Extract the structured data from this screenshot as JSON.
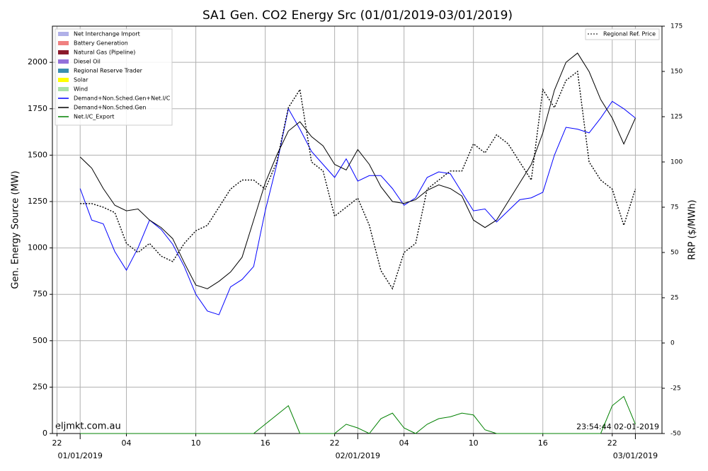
{
  "chart_data": {
    "type": "line",
    "title": "SA1 Gen. CO2 Energy Src (01/01/2019-03/01/2019)",
    "ylabel": "Gen. Energy Source (MW)",
    "y2label": "RRP ($/MWh)",
    "watermark": "eljmkt.com.au",
    "timestamp": "23:54:44 02-01-2019",
    "grid": true,
    "legend": "upper left",
    "legend2": "upper right",
    "xlim": [
      -2.4,
      50.3
    ],
    "xticks": [
      {
        "value": -2,
        "label": "22"
      },
      {
        "value": 4,
        "label": "04"
      },
      {
        "value": 10,
        "label": "10"
      },
      {
        "value": 16,
        "label": "16"
      },
      {
        "value": 22,
        "label": "22"
      },
      {
        "value": 28,
        "label": "04"
      },
      {
        "value": 34,
        "label": "10"
      },
      {
        "value": 40,
        "label": "16"
      },
      {
        "value": 46,
        "label": "22"
      }
    ],
    "date_ticks": [
      {
        "value": 0,
        "label": "01/01/2019"
      },
      {
        "value": 24,
        "label": "02/01/2019"
      },
      {
        "value": 48,
        "label": "03/01/2019"
      }
    ],
    "ylim": [
      0,
      2195
    ],
    "yticks": [
      0,
      250,
      500,
      750,
      1000,
      1250,
      1500,
      1750,
      2000
    ],
    "y2lim": [
      -50,
      175
    ],
    "y2ticks": [
      -50,
      -25,
      0,
      25,
      50,
      75,
      100,
      125,
      150,
      175
    ],
    "area_legend": [
      {
        "name": "Net Interchange Import",
        "color": "#b0b0e8"
      },
      {
        "name": "Battery Generation",
        "color": "#f08080"
      },
      {
        "name": "Natural Gas (Pipeline)",
        "color": "#8b1a2b"
      },
      {
        "name": "Diesel Oil",
        "color": "#9370db"
      },
      {
        "name": "Regional Reserve Trader",
        "color": "#3a8fb0"
      },
      {
        "name": "Solar",
        "color": "#ffff00"
      },
      {
        "name": "Wind",
        "color": "#a8e0a8"
      }
    ],
    "x": [
      0,
      1,
      2,
      3,
      4,
      5,
      6,
      7,
      8,
      9,
      10,
      11,
      12,
      13,
      14,
      15,
      16,
      17,
      18,
      19,
      20,
      21,
      22,
      23,
      24,
      25,
      26,
      27,
      28,
      29,
      30,
      31,
      32,
      33,
      34,
      35,
      36,
      37,
      38,
      39,
      40,
      41,
      42,
      43,
      44,
      45,
      46,
      47,
      48
    ],
    "series": [
      {
        "name": "Demand+Non.Sched.Gen+Net.I/C",
        "color": "#0000ff",
        "dash": "solid",
        "values": [
          1320,
          1150,
          1130,
          980,
          880,
          1000,
          1150,
          1100,
          1020,
          900,
          750,
          660,
          640,
          790,
          830,
          900,
          1200,
          1450,
          1750,
          1640,
          1520,
          1450,
          1380,
          1480,
          1360,
          1390,
          1390,
          1320,
          1230,
          1270,
          1380,
          1410,
          1400,
          1300,
          1200,
          1210,
          1140,
          1200,
          1260,
          1270,
          1300,
          1500,
          1650,
          1640,
          1620,
          1700,
          1790,
          1750,
          1700
        ]
      },
      {
        "name": "Demand+Non.Sched.Gen",
        "color": "#000000",
        "dash": "solid",
        "values": [
          1490,
          1430,
          1320,
          1230,
          1200,
          1210,
          1150,
          1110,
          1050,
          920,
          800,
          780,
          820,
          870,
          950,
          1150,
          1350,
          1500,
          1630,
          1680,
          1600,
          1550,
          1450,
          1420,
          1530,
          1450,
          1330,
          1250,
          1240,
          1260,
          1310,
          1340,
          1320,
          1280,
          1150,
          1110,
          1150,
          1250,
          1350,
          1450,
          1620,
          1850,
          2000,
          2050,
          1950,
          1800,
          1700,
          1560,
          1700
        ]
      },
      {
        "name": "Net.I/C_Export",
        "color": "#008000",
        "dash": "solid",
        "values": [
          0,
          0,
          0,
          0,
          0,
          0,
          0,
          0,
          0,
          0,
          0,
          0,
          0,
          0,
          0,
          0,
          50,
          100,
          150,
          0,
          0,
          0,
          0,
          50,
          30,
          0,
          80,
          110,
          30,
          0,
          50,
          80,
          90,
          110,
          100,
          20,
          0,
          0,
          0,
          0,
          0,
          0,
          0,
          0,
          0,
          0,
          150,
          200,
          50
        ]
      },
      {
        "name": "Regional Ref. Price",
        "color": "#000000",
        "dash": "dotted",
        "axis": "y2",
        "values": [
          77,
          77,
          75,
          72,
          55,
          50,
          55,
          48,
          45,
          55,
          62,
          65,
          75,
          85,
          90,
          90,
          85,
          100,
          130,
          140,
          100,
          95,
          70,
          75,
          80,
          65,
          40,
          30,
          50,
          55,
          85,
          90,
          95,
          95,
          110,
          105,
          115,
          110,
          100,
          90,
          140,
          130,
          145,
          150,
          100,
          90,
          85,
          65,
          85
        ]
      }
    ]
  }
}
